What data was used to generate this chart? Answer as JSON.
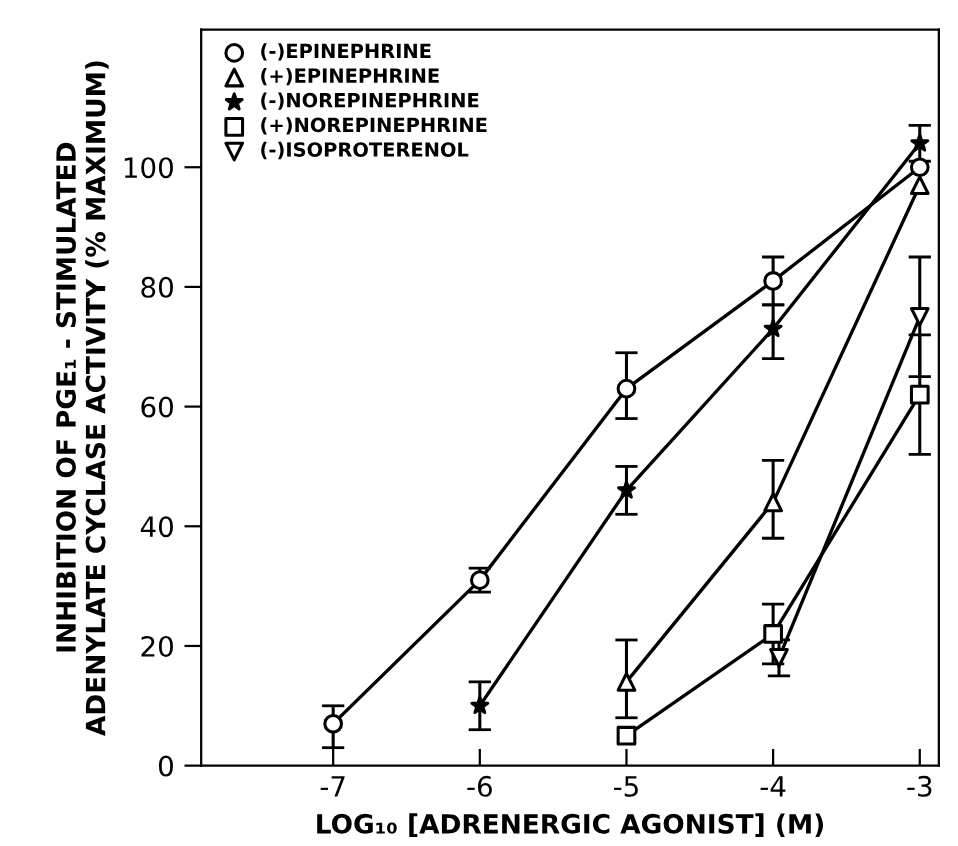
{
  "chart_data": {
    "type": "line",
    "xlabel": "LOG₁₀ [ADRENERGIC AGONIST] (M)",
    "ylabel": "INHIBITION OF PGE₁ - STIMULATED\nADENYLATE CYCLASE ACTIVITY (% MAXIMUM)",
    "xlim": [
      -7.9,
      -2.87
    ],
    "xticks": [
      -7,
      -6,
      -5,
      -4,
      -3
    ],
    "ylim": [
      0,
      123
    ],
    "yticks": [
      0,
      20,
      40,
      60,
      80,
      100
    ],
    "legend": "top left",
    "grid": false,
    "line_style": "solid",
    "series": [
      {
        "name": "(-)EPINEPHRINE",
        "color": "#000000",
        "marker": "circle",
        "x": [
          -7,
          -6,
          -5,
          -4,
          -3
        ],
        "values": [
          7,
          31,
          63,
          81,
          100
        ],
        "errors": [
          [
            3,
            10
          ],
          2,
          [
            58,
            69
          ],
          [
            77,
            85
          ],
          null
        ]
      },
      {
        "name": "(+)EPINEPHRINE",
        "color": "#000000",
        "marker": "triangle",
        "x": [
          -5,
          -4,
          -3
        ],
        "values": [
          14,
          44,
          97
        ],
        "errors": [
          [
            8,
            21
          ],
          [
            38,
            51
          ],
          null
        ]
      },
      {
        "name": "(-)NOREPINEPHRINE",
        "color": "#000000",
        "marker": "star",
        "x": [
          -6,
          -5,
          -4,
          -3
        ],
        "values": [
          10,
          46,
          73,
          104
        ],
        "errors": [
          [
            6,
            14
          ],
          [
            42,
            50
          ],
          [
            68,
            77
          ],
          [
            101,
            107
          ]
        ]
      },
      {
        "name": "(+)NOREPINEPHRINE",
        "color": "#000000",
        "marker": "square",
        "x": [
          -5,
          -4,
          -3
        ],
        "values": [
          5,
          22,
          62
        ],
        "errors": [
          null,
          [
            17,
            27
          ],
          [
            52,
            72
          ]
        ]
      },
      {
        "name": "(-)ISOPROTERENOL",
        "color": "#000000",
        "marker": "triangle_down",
        "x": [
          -3.96,
          -3
        ],
        "values": [
          18,
          75
        ],
        "errors": [
          [
            15,
            21
          ],
          [
            65,
            85
          ]
        ]
      }
    ]
  }
}
